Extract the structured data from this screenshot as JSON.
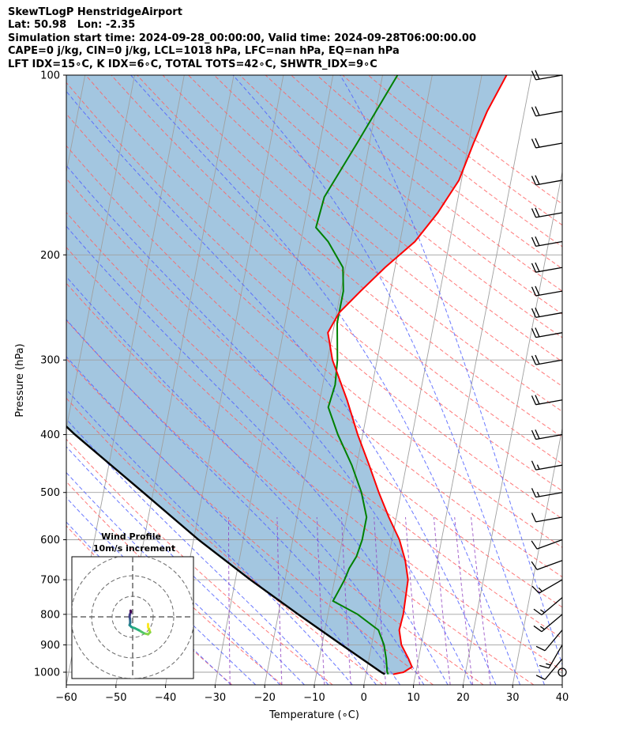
{
  "header": {
    "lines": [
      "SkewTLogP HenstridgeAirport",
      "Lat: 50.98   Lon: -2.35",
      "Simulation start time: 2024-09-28_00:00:00, Valid time: 2024-09-28T06:00:00.00",
      "CAPE=0 j/kg, CIN=0 j/kg, LCL=1018 hPa, LFC=nan hPa, EQ=nan hPa",
      "LFT IDX=15∘C, K IDX=6∘C, TOTAL TOTS=42∘C, SHWTR_IDX=9∘C"
    ]
  },
  "chart_data": {
    "type": "skew-t log-p",
    "xlabel": "Temperature (∘C)",
    "ylabel": "Pressure (hPa)",
    "xlim": [
      -60,
      40
    ],
    "ylim": [
      1050,
      100
    ],
    "x_ticks": [
      -60,
      -50,
      -40,
      -30,
      -20,
      -10,
      0,
      10,
      20,
      30,
      40
    ],
    "y_ticks": [
      1000,
      900,
      800,
      700,
      600,
      500,
      400,
      300,
      200,
      100
    ],
    "y_scale": "log",
    "grid": true,
    "colors": {
      "temperature": "#ff0000",
      "dewpoint": "#008000",
      "parcel": "#000000",
      "cape_fill": "#a3c6e0",
      "dry_adiabats": "#ff6060",
      "moist_adiabats": "#5060ff",
      "mixing_ratio": "#9040c0",
      "isotherms": "#a0a0a0"
    },
    "series": [
      {
        "key": "temperature",
        "pressure": [
          1008,
          1000,
          980,
          950,
          900,
          850,
          800,
          750,
          700,
          650,
          600,
          550,
          500,
          450,
          400,
          350,
          300,
          270,
          250,
          230,
          210,
          190,
          170,
          150,
          130,
          115,
          100
        ],
        "values": [
          5.5,
          7.5,
          9.0,
          8.0,
          6.0,
          5.0,
          5.2,
          5.0,
          4.8,
          3.5,
          1.5,
          -1.5,
          -4.5,
          -7.5,
          -11.0,
          -14.5,
          -19.0,
          -21.0,
          -19.5,
          -16.0,
          -12.0,
          -7.0,
          -3.5,
          -0.5,
          1.0,
          2.5,
          5.0
        ]
      },
      {
        "key": "dewpoint",
        "pressure": [
          1008,
          1000,
          950,
          900,
          850,
          800,
          760,
          720,
          700,
          670,
          640,
          600,
          550,
          500,
          450,
          400,
          360,
          330,
          300,
          260,
          230,
          210,
          190,
          180,
          160,
          130,
          100
        ],
        "values": [
          4.5,
          4.2,
          3.5,
          2.5,
          0.8,
          -4.0,
          -9.5,
          -8.5,
          -8.0,
          -7.5,
          -6.5,
          -6.0,
          -6.0,
          -8.0,
          -11.0,
          -15.0,
          -18.0,
          -17.5,
          -18.0,
          -19.5,
          -19.5,
          -20.5,
          -24.5,
          -27.5,
          -27.0,
          -22.5,
          -17.0
        ]
      },
      {
        "key": "parcel",
        "pressure": [
          1008,
          1000,
          900,
          800,
          700,
          600,
          500,
          400,
          300,
          250,
          200,
          150,
          100
        ],
        "values": [
          3.8,
          3.0,
          -6.0,
          -16.0,
          -27.0,
          -39.0,
          -52.0,
          -68.0,
          -87.0,
          -99.0,
          -113.0,
          -130.0,
          -153.0
        ]
      }
    ],
    "wind_barbs": {
      "pressure": [
        1000,
        950,
        900,
        850,
        800,
        750,
        700,
        650,
        600,
        550,
        500,
        450,
        400,
        350,
        300,
        270,
        250,
        230,
        210,
        190,
        170,
        150,
        130,
        115,
        100
      ],
      "speed_kt": [
        0,
        10,
        15,
        10,
        15,
        15,
        15,
        10,
        10,
        10,
        15,
        15,
        20,
        20,
        20,
        20,
        20,
        20,
        20,
        20,
        20,
        20,
        20,
        20,
        20
      ],
      "direction_deg": [
        0,
        220,
        210,
        220,
        230,
        230,
        240,
        250,
        250,
        260,
        260,
        260,
        260,
        260,
        260,
        260,
        260,
        260,
        260,
        260,
        260,
        260,
        260,
        260,
        260
      ]
    },
    "hodograph": {
      "title": "Wind Profile",
      "subtitle": "10m/s increment",
      "u": [
        7.5,
        7.5,
        8.0,
        8.5,
        7.5,
        5.5,
        3.0,
        1.0,
        -0.5,
        -1.5,
        -1.2,
        -1.2,
        -1.3,
        -1.5,
        -1.4,
        -1.0,
        -0.9,
        -1.0
      ],
      "v": [
        -3.5,
        -5.0,
        -6.0,
        -7.5,
        -8.5,
        -8.0,
        -6.5,
        -5.5,
        -5.0,
        -4.0,
        -3.0,
        -2.5,
        -1.0,
        0.0,
        1.0,
        2.0,
        2.5,
        3.0
      ],
      "rings": [
        10,
        20,
        30
      ]
    }
  }
}
